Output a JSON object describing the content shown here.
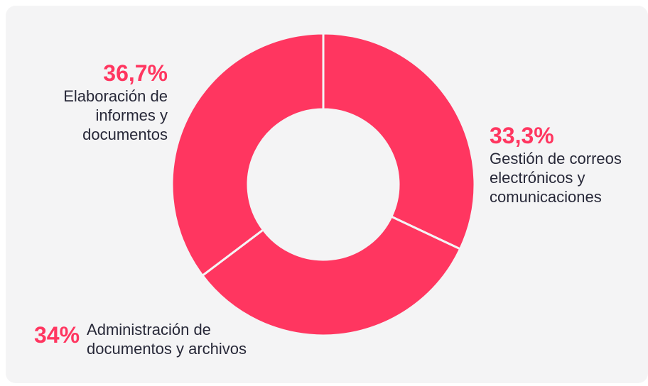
{
  "chart_data": {
    "type": "donut",
    "categories": [
      "Gestión de correos electrónicos y comunicaciones",
      "Administración de documentos y archivos",
      "Elaboración de informes y documentos"
    ],
    "values": [
      33.3,
      34,
      36.7
    ],
    "value_labels": [
      "33,3%",
      "34%",
      "36,7%"
    ],
    "color": "#ff3660"
  }
}
